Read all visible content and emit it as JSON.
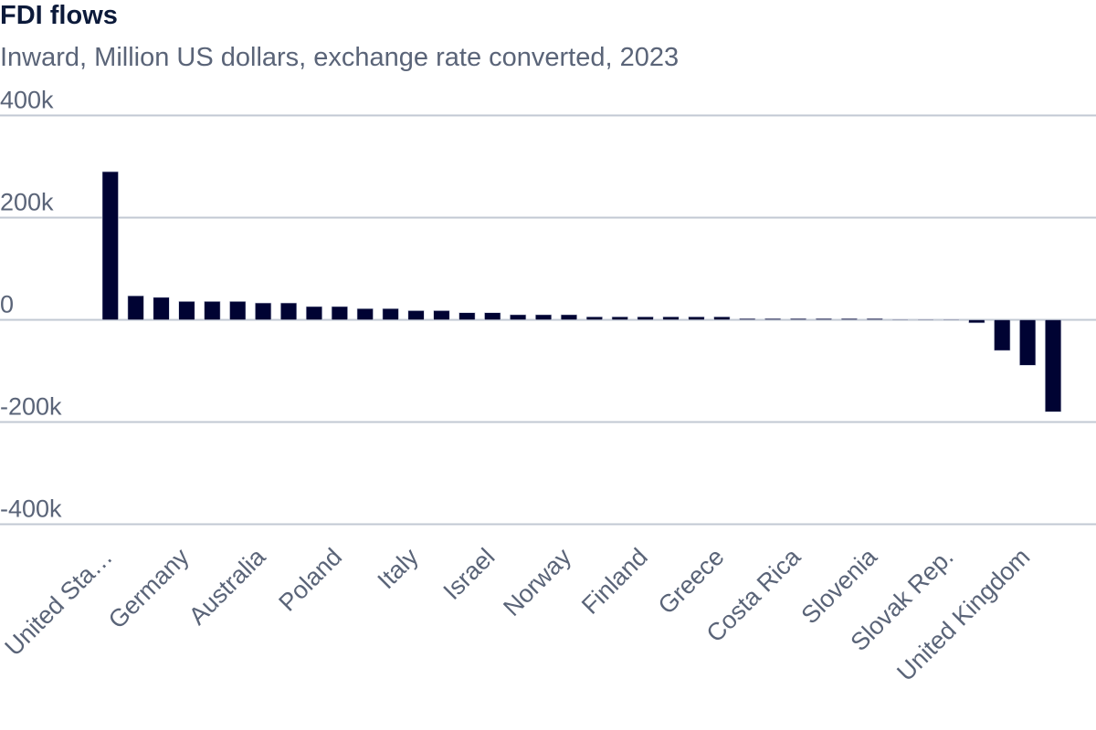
{
  "chart_data": {
    "type": "bar",
    "title": "FDI flows",
    "subtitle": "Inward, Million US dollars, exchange rate converted, 2023",
    "xlabel": "",
    "ylabel": "",
    "ylim": [
      -400000,
      400000
    ],
    "yticks": [
      400000,
      200000,
      0,
      -200000,
      -400000
    ],
    "ytick_labels": [
      "400k",
      "200k",
      "0",
      "-200k",
      "-400k"
    ],
    "grid": true,
    "color": "#000333",
    "categories": [
      "United Sta…",
      "",
      "",
      "Germany",
      "",
      "",
      "Australia",
      "",
      "",
      "Poland",
      "",
      "",
      "Italy",
      "",
      "",
      "Israel",
      "",
      "",
      "Norway",
      "",
      "",
      "Finland",
      "",
      "",
      "Greece",
      "",
      "",
      "Costa Rica",
      "",
      "",
      "Slovenia",
      "",
      "",
      "Slovak Rep.",
      "",
      "",
      "United Kingdom",
      ""
    ],
    "values": [
      290000,
      47000,
      44000,
      36000,
      36000,
      36000,
      33000,
      33000,
      26000,
      26000,
      22000,
      22000,
      18000,
      18000,
      14000,
      14000,
      10000,
      10000,
      10000,
      6000,
      6000,
      6000,
      6000,
      6000,
      6000,
      2500,
      2500,
      2500,
      2500,
      2500,
      2500,
      1000,
      1000,
      1000,
      -6000,
      -60000,
      -89000,
      -180000
    ]
  }
}
